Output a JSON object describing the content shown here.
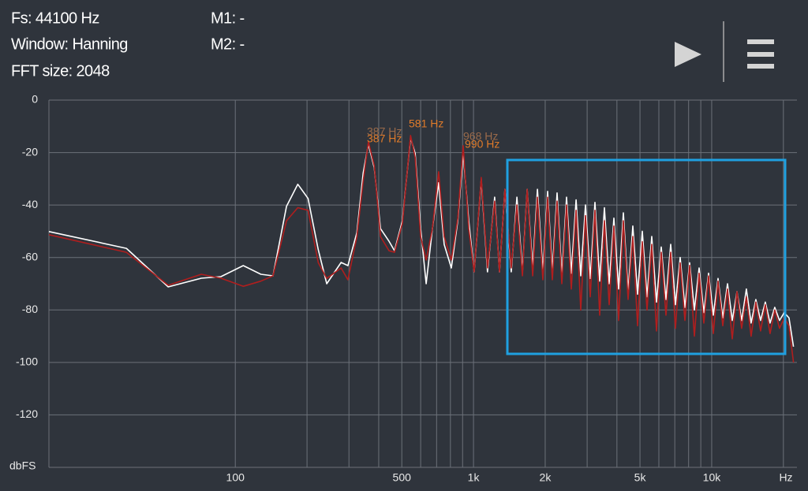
{
  "header": {
    "fs": "Fs: 44100 Hz",
    "window": "Window: Hanning",
    "fft_size": "FFT size: 2048",
    "m1": "M1: -",
    "m2": "M2: -"
  },
  "chart_data": {
    "type": "line",
    "ylabel": "dbFS",
    "xunit": "Hz",
    "xscale": "log",
    "grid": true,
    "xlim": [
      16.5,
      22800
    ],
    "ylim": [
      -140,
      0
    ],
    "yticks": [
      0,
      -20,
      -40,
      -60,
      -80,
      -100,
      -120
    ],
    "xticks": [
      100,
      500,
      {
        "value": 1000,
        "label": "1k"
      },
      {
        "value": 2000,
        "label": "2k"
      },
      {
        "value": 5000,
        "label": "5k"
      },
      {
        "value": 10000,
        "label": "10k"
      }
    ],
    "xgrid": [
      200,
      300,
      400,
      600,
      700,
      800,
      900,
      3000,
      4000,
      6000,
      7000,
      8000,
      9000,
      20000
    ],
    "x": [
      16.5,
      34.9,
      52.3,
      72,
      87,
      108,
      128,
      144,
      164,
      183,
      202,
      223,
      242,
      278,
      297,
      324,
      344,
      362,
      383,
      407,
      442,
      466,
      503,
      544,
      569,
      600,
      633,
      672,
      714,
      753,
      807,
      859,
      905,
      955,
      1006,
      1078,
      1145,
      1227,
      1285,
      1355,
      1440,
      1522,
      1605,
      1680,
      1772,
      1855,
      1955,
      2047,
      2143,
      2243,
      2348,
      2458,
      2574,
      2695,
      2821,
      2953,
      3091,
      3236,
      3387,
      3546,
      3712,
      3885,
      4067,
      4258,
      4457,
      4666,
      4884,
      5113,
      5352,
      5603,
      5865,
      6140,
      6427,
      6728,
      7043,
      7373,
      7718,
      8080,
      8458,
      8853,
      9268,
      9701,
      10155,
      10630,
      11128,
      11649,
      12194,
      12765,
      13362,
      13988,
      14642,
      15327,
      16045,
      16796,
      17582,
      18405,
      19267,
      20168,
      21112,
      22050
    ],
    "series": [
      {
        "color": "#ffffff",
        "values": [
          -50.1,
          -56.5,
          -71.2,
          -67.9,
          -67.3,
          -63.1,
          -66.4,
          -67,
          -40.5,
          -32.1,
          -37.5,
          -57.1,
          -70,
          -61.9,
          -63.1,
          -50.5,
          -27.9,
          -16.8,
          -25.8,
          -49,
          -53.8,
          -57.4,
          -45.9,
          -14.4,
          -20.4,
          -49,
          -70,
          -49,
          -31.5,
          -55,
          -64,
          -45.9,
          -20.4,
          -45.9,
          -65.5,
          -30.3,
          -65.5,
          -37,
          -65.5,
          -34,
          -65.5,
          -37,
          -65.5,
          -34,
          -64,
          -34,
          -65.5,
          -34.8,
          -65.5,
          -35.4,
          -67,
          -37,
          -66,
          -38,
          -67,
          -40,
          -68,
          -39,
          -69,
          -41,
          -70,
          -45,
          -72,
          -43,
          -73,
          -48,
          -74,
          -50,
          -75,
          -52,
          -77,
          -56,
          -76,
          -55,
          -78,
          -60,
          -79,
          -62,
          -80,
          -64,
          -81,
          -66,
          -82,
          -68,
          -83,
          -70,
          -84,
          -73,
          -84,
          -72,
          -85,
          -76,
          -84,
          -77,
          -85,
          -79,
          -84,
          -81,
          -83,
          -94
        ]
      },
      {
        "color": "#b01e1e",
        "values": [
          -51.3,
          -58,
          -70.6,
          -66.4,
          -67.9,
          -71,
          -69,
          -67,
          -46,
          -41,
          -42,
          -62,
          -68,
          -64,
          -68.5,
          -52,
          -31,
          -15.9,
          -25,
          -52,
          -57.4,
          -58,
          -47,
          -13.5,
          -21.9,
          -52,
          -61,
          -49,
          -27.3,
          -52,
          -61,
          -45,
          -17.4,
          -49,
          -65.5,
          -29.5,
          -64,
          -38.5,
          -65.5,
          -34,
          -64,
          -40,
          -67,
          -34,
          -67,
          -37,
          -68.5,
          -37,
          -68.5,
          -38.5,
          -70,
          -40,
          -72,
          -42,
          -80,
          -44,
          -75,
          -42,
          -82,
          -46,
          -78,
          -48,
          -84,
          -46,
          -76,
          -52,
          -86,
          -54,
          -80,
          -55,
          -88,
          -58,
          -82,
          -58,
          -87,
          -62,
          -84,
          -63,
          -90,
          -66,
          -85,
          -67,
          -89,
          -69,
          -86,
          -72,
          -91,
          -73,
          -87,
          -75,
          -90,
          -77,
          -88,
          -78,
          -89,
          -80,
          -87,
          -83,
          -86,
          -100
        ]
      }
    ],
    "annotations": [
      {
        "text": "387 Hz",
        "color": "#9a6a4a"
      },
      {
        "text": "387 Hz",
        "color": "#e07b2a"
      },
      {
        "text": "581 Hz",
        "color": "#e07b2a"
      },
      {
        "text": "968 Hz",
        "color": "#9a6a4a"
      },
      {
        "text": "990 Hz",
        "color": "#e07b2a"
      }
    ]
  }
}
